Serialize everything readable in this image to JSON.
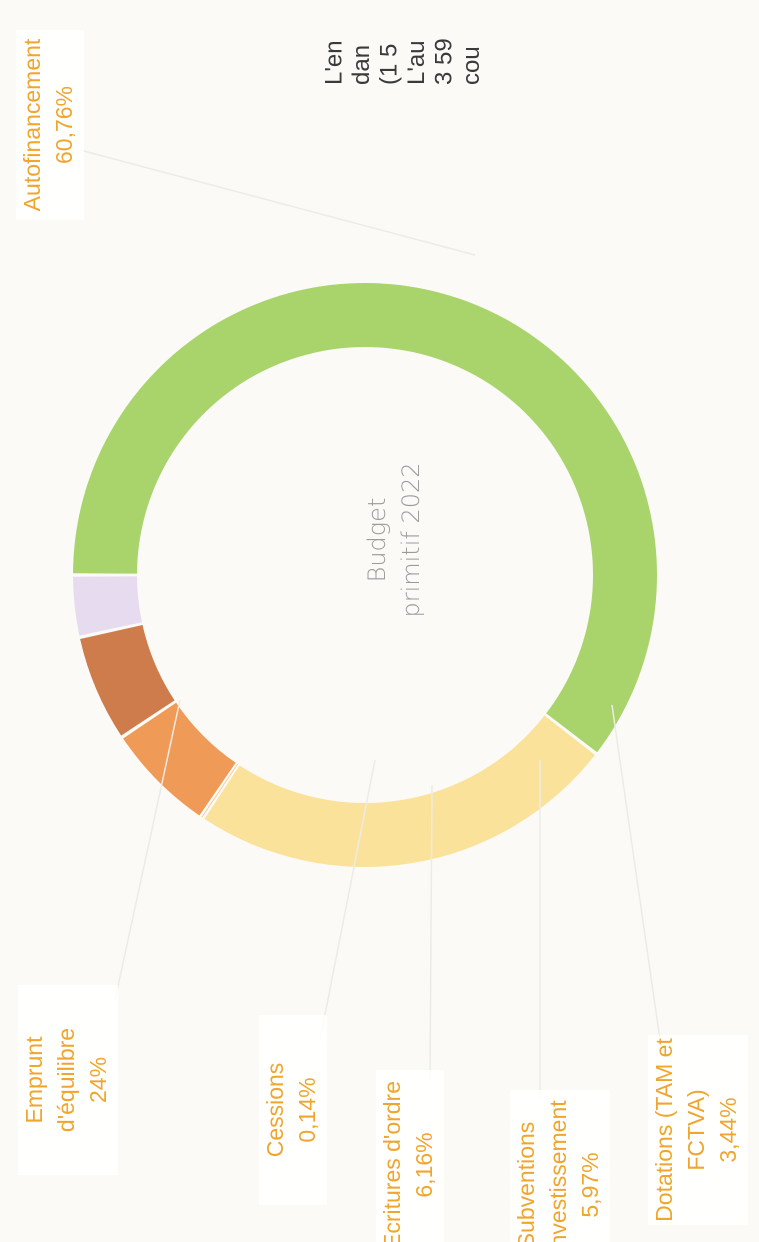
{
  "chart_data": {
    "type": "donut",
    "center_text": [
      "Budget",
      "primitif 2022"
    ],
    "categories": [
      [
        "Autofinancement"
      ],
      [
        "Emprunt",
        "d'équilibre"
      ],
      [
        "Cessions"
      ],
      [
        "Ecritures d'ordre"
      ],
      [
        "Subventions",
        "d'investissement"
      ],
      [
        "Dotations (TAM et",
        "FCTVA)"
      ]
    ],
    "values": [
      60.76,
      24,
      0.14,
      6.16,
      5.97,
      3.44
    ],
    "value_labels": [
      "60,76%",
      "24%",
      "0,14%",
      "6,16%",
      "5,97%",
      "3,44%"
    ],
    "colors": [
      "#a9d46c",
      "#fbe29a",
      "#f6c27a",
      "#ef9a56",
      "#cf7c4c",
      "#e7dbef"
    ],
    "side_text": [
      "L'en",
      "dan",
      "(1 5",
      "L'au",
      "3 59",
      "cou"
    ]
  }
}
